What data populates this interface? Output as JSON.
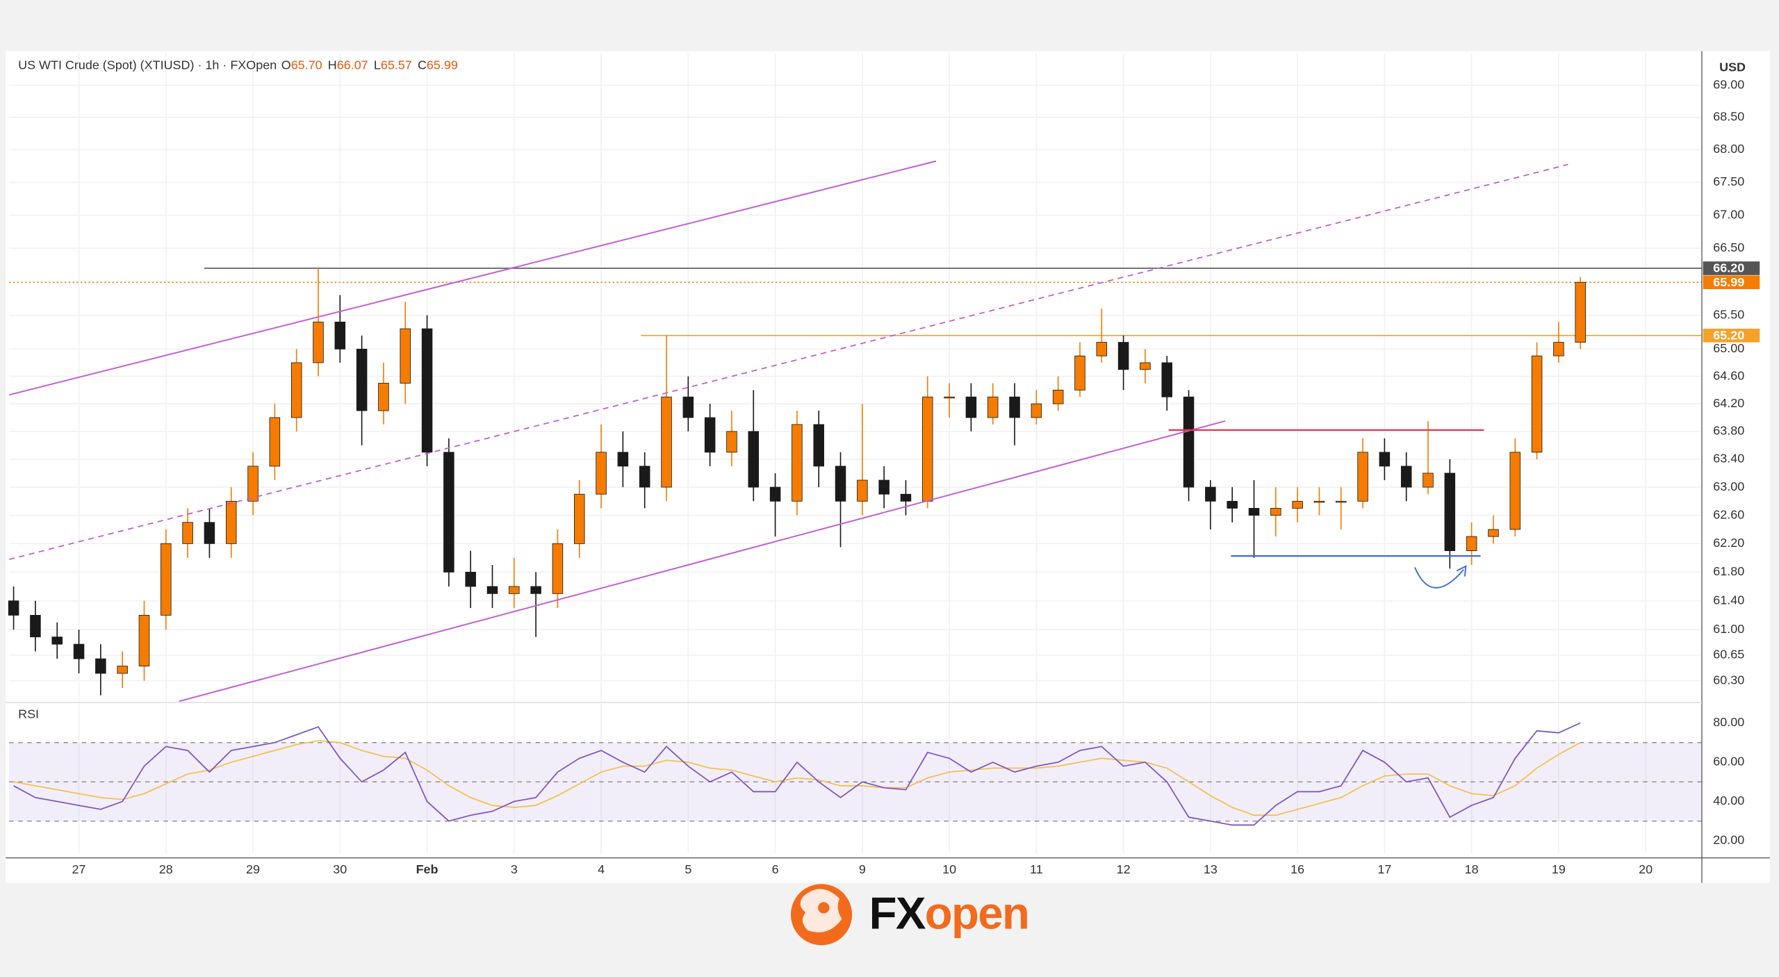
{
  "header": {
    "symbol": "US WTI Crude (Spot) (XTIUSD) · 1h · FXOpen",
    "ohlc": [
      {
        "key": "O",
        "value": "65.70"
      },
      {
        "key": "H",
        "value": "66.07"
      },
      {
        "key": "L",
        "value": "65.57"
      },
      {
        "key": "C",
        "value": "65.99"
      }
    ]
  },
  "chart_data": {
    "type": "candlestick",
    "currency": "USD",
    "log_scale": true,
    "grid": true,
    "up_color": "#f57c00",
    "down_color": "#1a1a1a",
    "categories": [
      null,
      null,
      null,
      "27",
      null,
      null,
      null,
      "28",
      null,
      null,
      null,
      "29",
      null,
      null,
      null,
      "30",
      null,
      null,
      null,
      "Feb",
      null,
      null,
      null,
      "3",
      null,
      null,
      null,
      "4",
      null,
      null,
      null,
      "5",
      null,
      null,
      null,
      "6",
      null,
      null,
      null,
      "9",
      null,
      null,
      null,
      "10",
      null,
      null,
      null,
      "11",
      null,
      null,
      null,
      "12",
      null,
      null,
      null,
      "13",
      null,
      null,
      null,
      "16",
      null,
      null,
      null,
      "17",
      null,
      null,
      null,
      "18",
      null,
      null,
      null,
      "19",
      null,
      null,
      null,
      "20",
      null,
      null
    ],
    "open": [
      61.4,
      61.2,
      60.9,
      60.8,
      60.6,
      60.4,
      60.5,
      61.2,
      62.2,
      62.5,
      62.2,
      62.8,
      63.3,
      64.0,
      64.8,
      65.4,
      65.0,
      64.1,
      64.5,
      65.3,
      63.5,
      61.8,
      61.6,
      61.5,
      61.6,
      61.5,
      62.2,
      62.9,
      63.5,
      63.3,
      63.0,
      64.3,
      64.0,
      63.5,
      63.8,
      63.0,
      62.8,
      63.9,
      63.3,
      62.8,
      63.1,
      62.9,
      62.8,
      64.3,
      64.3,
      64.0,
      64.3,
      64.0,
      64.2,
      64.4,
      64.9,
      65.1,
      64.7,
      64.8,
      64.3,
      63.0,
      62.8,
      62.7,
      62.6,
      62.7,
      62.8,
      62.8,
      62.8,
      63.5,
      63.3,
      63.0,
      63.2,
      62.1,
      62.3,
      62.4,
      63.5,
      64.9,
      65.1,
      null,
      null,
      null,
      null,
      null
    ],
    "high": [
      61.6,
      61.4,
      61.1,
      61.0,
      60.8,
      60.7,
      61.4,
      62.4,
      62.7,
      62.7,
      63.0,
      63.5,
      64.2,
      65.0,
      66.2,
      65.8,
      65.2,
      64.8,
      65.7,
      65.5,
      63.7,
      62.1,
      61.9,
      62.0,
      61.8,
      62.4,
      63.1,
      63.9,
      63.8,
      63.5,
      65.2,
      64.6,
      64.2,
      64.1,
      64.4,
      63.2,
      64.1,
      64.1,
      63.5,
      64.2,
      63.3,
      63.1,
      64.6,
      64.5,
      64.5,
      64.5,
      64.5,
      64.4,
      64.6,
      65.1,
      65.6,
      65.2,
      65.0,
      64.9,
      64.4,
      63.1,
      63.0,
      63.1,
      63.0,
      63.0,
      63.0,
      63.0,
      63.7,
      63.7,
      63.5,
      63.95,
      63.4,
      62.5,
      62.6,
      63.7,
      65.1,
      65.4,
      66.07,
      null,
      null,
      null,
      null,
      null
    ],
    "low": [
      61.0,
      60.7,
      60.6,
      60.4,
      60.1,
      60.2,
      60.3,
      61.0,
      62.0,
      62.0,
      62.0,
      62.6,
      63.1,
      63.8,
      64.6,
      64.8,
      63.6,
      63.9,
      64.2,
      63.3,
      61.6,
      61.3,
      61.3,
      61.3,
      60.9,
      61.3,
      62.0,
      62.7,
      63.0,
      62.7,
      62.8,
      63.8,
      63.3,
      63.3,
      62.8,
      62.3,
      62.6,
      63.0,
      62.15,
      62.6,
      62.7,
      62.6,
      62.7,
      64.0,
      63.8,
      63.9,
      63.6,
      63.9,
      64.1,
      64.3,
      64.8,
      64.4,
      64.5,
      64.1,
      62.8,
      62.4,
      62.5,
      62.0,
      62.3,
      62.5,
      62.6,
      62.4,
      62.7,
      63.1,
      62.8,
      62.9,
      61.85,
      61.9,
      62.2,
      62.3,
      63.4,
      64.8,
      65.0,
      null,
      null,
      null,
      null,
      null
    ],
    "close": [
      61.2,
      60.9,
      60.8,
      60.6,
      60.4,
      60.5,
      61.2,
      62.2,
      62.5,
      62.2,
      62.8,
      63.3,
      64.0,
      64.8,
      65.4,
      65.0,
      64.1,
      64.5,
      65.3,
      63.5,
      61.8,
      61.6,
      61.5,
      61.6,
      61.5,
      62.2,
      62.9,
      63.5,
      63.3,
      63.0,
      64.3,
      64.0,
      63.5,
      63.8,
      63.0,
      62.8,
      63.9,
      63.3,
      62.8,
      63.1,
      62.9,
      62.8,
      64.3,
      64.3,
      64.0,
      64.3,
      64.0,
      64.2,
      64.4,
      64.9,
      65.1,
      64.7,
      64.8,
      64.3,
      63.0,
      62.8,
      62.7,
      62.6,
      62.7,
      62.8,
      62.8,
      62.8,
      63.5,
      63.3,
      63.0,
      63.2,
      62.1,
      62.3,
      62.4,
      63.5,
      64.9,
      65.1,
      65.99,
      null,
      null,
      null,
      null,
      null
    ],
    "ylim": [
      60.02,
      69.5
    ],
    "yticks": [
      {
        "value": 69,
        "label": "69.00"
      },
      {
        "value": 68.5,
        "label": "68.50"
      },
      {
        "value": 68,
        "label": "68.00"
      },
      {
        "value": 67.5,
        "label": "67.50"
      },
      {
        "value": 67,
        "label": "67.00"
      },
      {
        "value": 66.5,
        "label": "66.50"
      },
      {
        "value": 65.5,
        "label": "65.50"
      },
      {
        "value": 65,
        "label": "65.00"
      },
      {
        "value": 64.6,
        "label": "64.60"
      },
      {
        "value": 64.2,
        "label": "64.20"
      },
      {
        "value": 63.8,
        "label": "63.80"
      },
      {
        "value": 63.4,
        "label": "63.40"
      },
      {
        "value": 63,
        "label": "63.00"
      },
      {
        "value": 62.6,
        "label": "62.60"
      },
      {
        "value": 62.2,
        "label": "62.20"
      },
      {
        "value": 61.8,
        "label": "61.80"
      },
      {
        "value": 61.4,
        "label": "61.40"
      },
      {
        "value": 61,
        "label": "61.00"
      },
      {
        "value": 60.65,
        "label": "60.65"
      },
      {
        "value": 60.3,
        "label": "60.30"
      }
    ],
    "levels": [
      {
        "value": 66.2,
        "label": "66.20",
        "color": "#555555"
      },
      {
        "value": 65.99,
        "label": "65.99",
        "color": "#f57c00"
      },
      {
        "value": 65.2,
        "label": "65.20",
        "color": "#f5a12a"
      }
    ],
    "rsi": {
      "title": "RSI",
      "color": "#7e57c2",
      "ma_color": "#f2c14e",
      "values": [
        48,
        42,
        40,
        38,
        36,
        40,
        58,
        68,
        66,
        55,
        66,
        68,
        70,
        74,
        78,
        62,
        50,
        56,
        65,
        40,
        30,
        33,
        35,
        40,
        42,
        55,
        62,
        66,
        60,
        55,
        68,
        58,
        50,
        55,
        45,
        45,
        60,
        50,
        42,
        50,
        47,
        46,
        65,
        62,
        55,
        60,
        55,
        58,
        60,
        66,
        68,
        58,
        60,
        50,
        32,
        30,
        28,
        28,
        38,
        45,
        45,
        48,
        66,
        60,
        50,
        52,
        32,
        38,
        42,
        62,
        76,
        75,
        80,
        null,
        null,
        null,
        null,
        null
      ],
      "ma": [
        50,
        48,
        46,
        44,
        42,
        41,
        44,
        49,
        54,
        56,
        60,
        63,
        66,
        69,
        71,
        70,
        66,
        63,
        62,
        56,
        48,
        42,
        38,
        37,
        38,
        43,
        49,
        55,
        58,
        58,
        61,
        60,
        57,
        56,
        53,
        50,
        52,
        51,
        48,
        48,
        47,
        47,
        52,
        55,
        56,
        57,
        57,
        57,
        58,
        60,
        62,
        61,
        60,
        57,
        50,
        43,
        37,
        33,
        33,
        36,
        39,
        42,
        48,
        53,
        54,
        54,
        48,
        44,
        43,
        48,
        57,
        64,
        70,
        null,
        null,
        null,
        null,
        null
      ],
      "ylim": [
        13.6,
        89.9
      ],
      "yticks": [
        {
          "value": 80,
          "label": "80.00"
        },
        {
          "value": 60,
          "label": "60.00"
        },
        {
          "value": 40,
          "label": "40.00"
        },
        {
          "value": 20,
          "label": "20.00"
        }
      ],
      "band": [
        30,
        70
      ],
      "levels": [
        30,
        50,
        70
      ]
    }
  },
  "logo": {
    "part1": "FX",
    "part2": "open"
  }
}
